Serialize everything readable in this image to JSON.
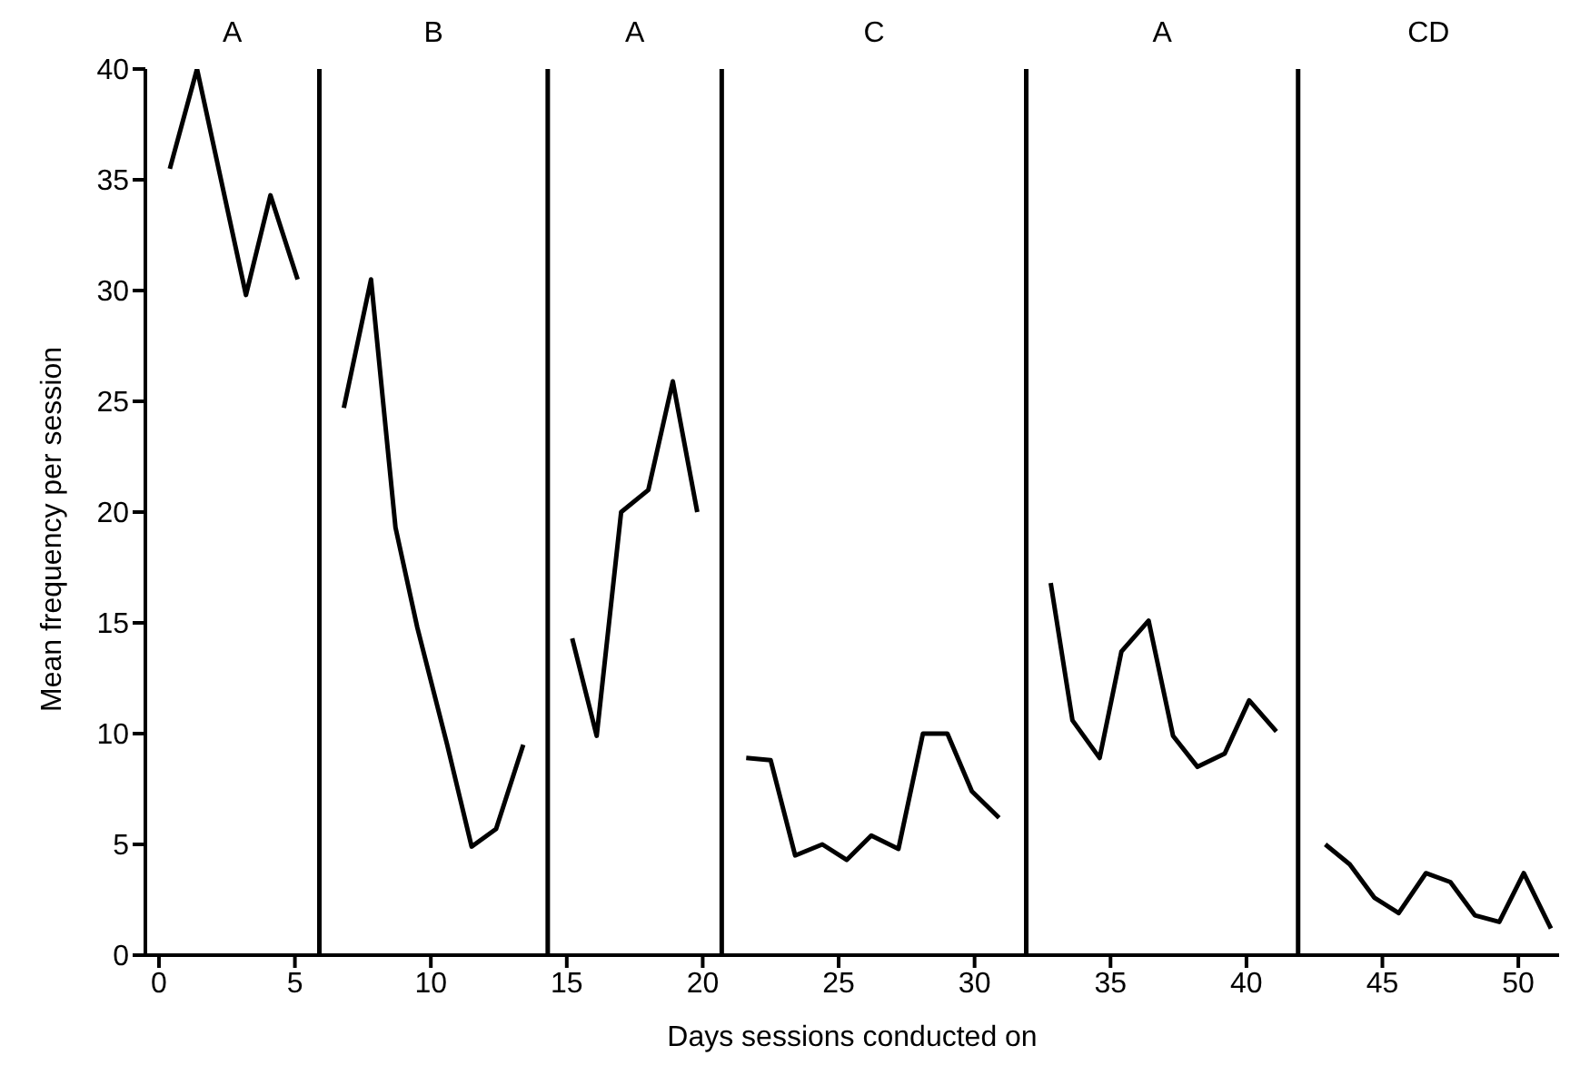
{
  "chart_data": {
    "type": "line",
    "xlabel": "Days sessions conducted on",
    "ylabel": "Mean frequency per session",
    "series": [
      {
        "color": "#000000",
        "x": [
          0.4,
          1.4,
          3.2,
          4.1,
          5.1
        ],
        "values": [
          35.5,
          40,
          29.8,
          34.3,
          30.5
        ]
      },
      {
        "color": "#000000",
        "x": [
          6.8,
          7.8,
          8.7,
          9.5,
          10.6,
          11.5,
          12.4,
          13.4
        ],
        "values": [
          24.7,
          30.5,
          19.3,
          14.8,
          9.5,
          4.9,
          5.7,
          9.5
        ]
      },
      {
        "color": "#000000",
        "x": [
          15.2,
          16.1,
          17.0,
          18.0,
          18.9,
          19.8
        ],
        "values": [
          14.3,
          9.9,
          20.0,
          21.0,
          25.9,
          20.0
        ]
      },
      {
        "color": "#000000",
        "x": [
          21.6,
          22.5,
          23.4,
          24.4,
          25.3,
          26.2,
          27.2,
          28.1,
          29.0,
          29.9,
          30.9
        ],
        "values": [
          8.9,
          8.8,
          4.5,
          5.0,
          4.3,
          5.4,
          4.8,
          10.0,
          10.0,
          7.4,
          6.2
        ]
      },
      {
        "color": "#000000",
        "x": [
          32.8,
          33.6,
          34.6,
          35.4,
          36.4,
          37.3,
          38.2,
          39.2,
          40.1,
          41.1
        ],
        "values": [
          16.8,
          10.6,
          8.9,
          13.7,
          15.1,
          9.9,
          8.5,
          9.1,
          11.5,
          10.1
        ]
      },
      {
        "color": "#000000",
        "x": [
          42.9,
          43.8,
          44.7,
          45.6,
          46.6,
          47.5,
          48.4,
          49.3,
          50.2,
          51.2
        ],
        "values": [
          5.0,
          4.1,
          2.6,
          1.9,
          3.7,
          3.3,
          1.8,
          1.5,
          3.7,
          1.2
        ]
      }
    ],
    "ref_lines": [
      {
        "axis": "x",
        "value": 5.9,
        "color": "#000000"
      },
      {
        "axis": "x",
        "value": 14.3,
        "color": "#000000"
      },
      {
        "axis": "x",
        "value": 20.7,
        "color": "#000000"
      },
      {
        "axis": "x",
        "value": 31.9,
        "color": "#000000"
      },
      {
        "axis": "x",
        "value": 41.9,
        "color": "#000000"
      }
    ],
    "annotations": [
      "A",
      "B",
      "A",
      "C",
      "A",
      "CD"
    ],
    "xlim": [
      -0.5,
      51.5
    ],
    "xticks": [
      0,
      5,
      10,
      15,
      20,
      25,
      30,
      35,
      40,
      45,
      50
    ],
    "ylim": [
      0,
      40
    ],
    "yticks": [
      0,
      5,
      10,
      15,
      20,
      25,
      30,
      35,
      40
    ],
    "marker": "none",
    "line_style": "solid"
  }
}
